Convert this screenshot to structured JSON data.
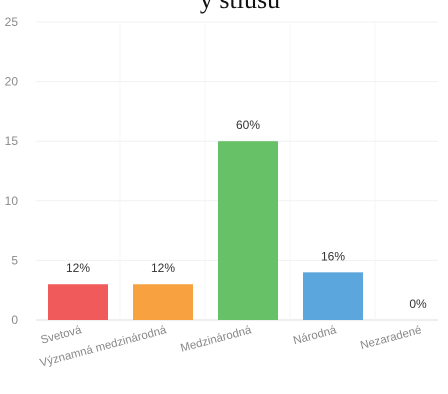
{
  "page": {
    "title_fragment": "y stiusu"
  },
  "chart_data": {
    "type": "bar",
    "categories": [
      "Svetová",
      "Významná medzinárodná",
      "Medzinárodná",
      "Národná",
      "Nezaradené"
    ],
    "values": [
      3,
      3,
      15,
      4,
      0
    ],
    "data_labels": [
      "12%",
      "12%",
      "60%",
      "16%",
      "0%"
    ],
    "colors": [
      "#f05a5a",
      "#f7a140",
      "#66c167",
      "#5ba6dc",
      "#bbbbbb"
    ],
    "ylim": [
      0,
      25
    ],
    "yticks": [
      0,
      5,
      10,
      15,
      20,
      25
    ],
    "ytick_labels": [
      "0",
      "5",
      "10",
      "15",
      "20",
      "25"
    ],
    "xlabel": "",
    "ylabel": "",
    "grid": true,
    "legend": "none"
  }
}
